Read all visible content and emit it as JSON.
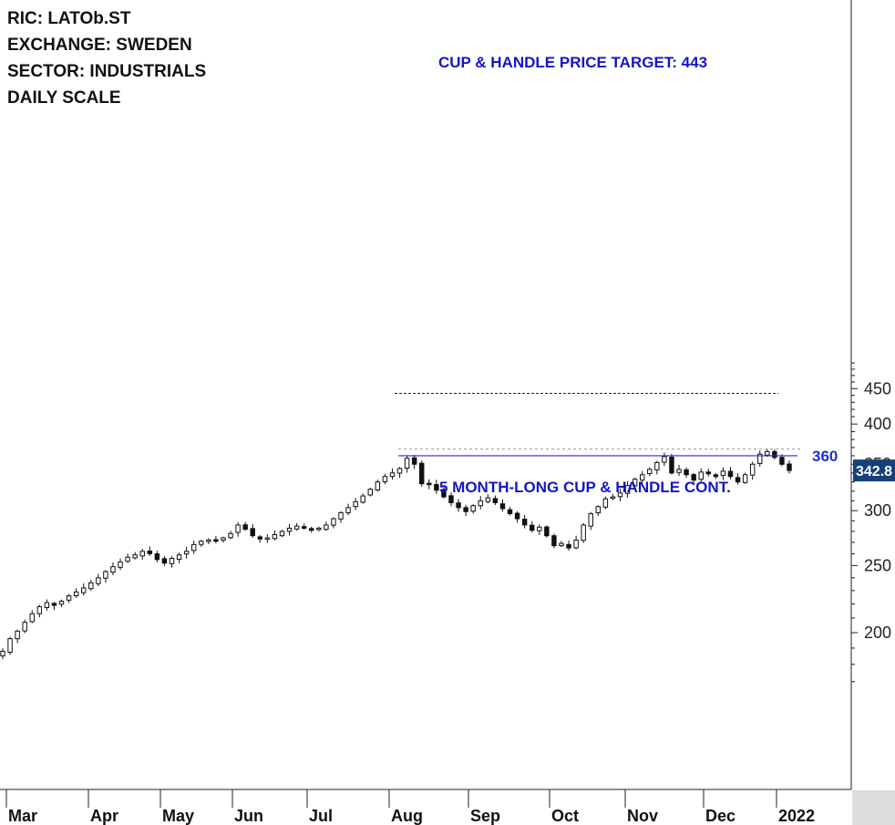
{
  "info": {
    "ric": "RIC: LATOb.ST",
    "exchange": "EXCHANGE: SWEDEN",
    "sector": "SECTOR: INDUSTRIALS",
    "scale": "DAILY SCALE"
  },
  "annotations": {
    "target": "CUP & HANDLE PRICE TARGET: 443",
    "pattern": "5 MONTH-LONG CUP & HANDLE CONT."
  },
  "colors": {
    "annotation": "#1515c8",
    "resistance": "#1f2fd0",
    "last_price_bg": "#15407a",
    "candle": "#111111"
  },
  "chart_data": {
    "type": "candlestick",
    "scale": "log",
    "ylim": [
      165,
      500
    ],
    "y_ticks": [
      200,
      250,
      300,
      350,
      400,
      450
    ],
    "x_ticks": [
      "Mar",
      "Apr",
      "May",
      "Jun",
      "Jul",
      "Aug",
      "Sep",
      "Oct",
      "Nov",
      "Dec",
      "2022"
    ],
    "resistance": {
      "value": 360,
      "label": "360"
    },
    "target": {
      "value": 443
    },
    "last_price": {
      "value": 342.8,
      "label": "342.8"
    },
    "high_line": {
      "value": 368
    },
    "closes": [
      188,
      196,
      201,
      207,
      213,
      218,
      221,
      219,
      222,
      226,
      229,
      232,
      236,
      240,
      245,
      249,
      253,
      257,
      259,
      262,
      260,
      255,
      252,
      256,
      259,
      262,
      268,
      271,
      272,
      271,
      274,
      278,
      286,
      282,
      276,
      273,
      274,
      277,
      280,
      283,
      285,
      283,
      281,
      283,
      286,
      292,
      298,
      303,
      309,
      315,
      322,
      330,
      336,
      340,
      345,
      357,
      350,
      328,
      327,
      321,
      314,
      308,
      303,
      299,
      305,
      310,
      313,
      308,
      302,
      297,
      292,
      286,
      281,
      284,
      276,
      267,
      269,
      265,
      272,
      286,
      297,
      304,
      312,
      314,
      318,
      326,
      333,
      338,
      344,
      352,
      359,
      340,
      344,
      338,
      332,
      341,
      339,
      336,
      342,
      336,
      330,
      338,
      350,
      362,
      365,
      358,
      350,
      342.8
    ]
  }
}
